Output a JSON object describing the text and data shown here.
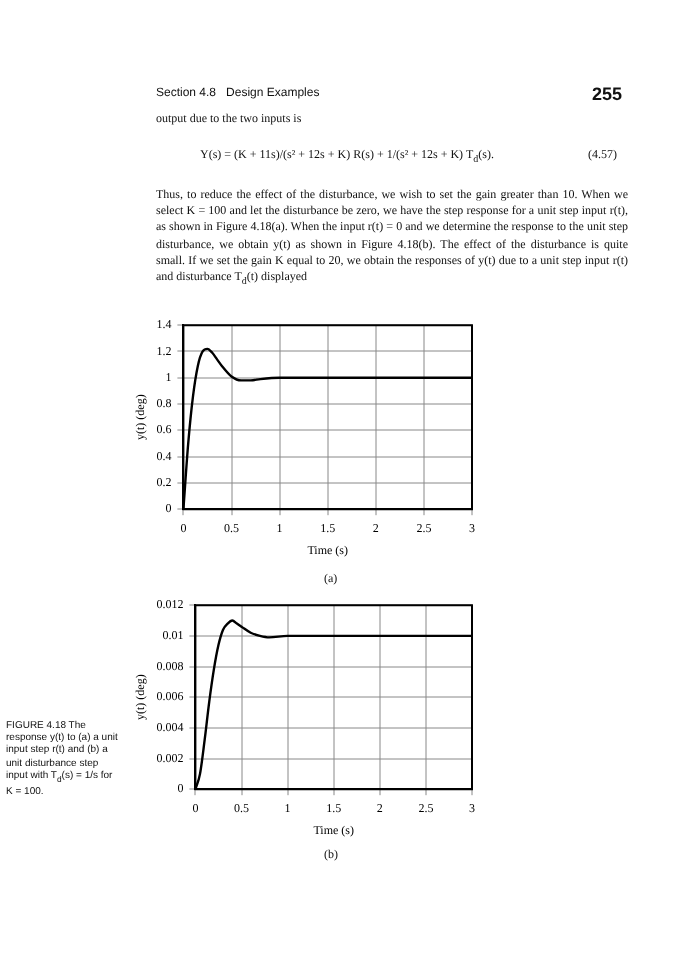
{
  "chart_data": [
    {
      "type": "line",
      "xlabel": "Time (s)",
      "ylabel": "y(t) (deg)",
      "annotations": [
        "Section 4.8   Design Examples",
        "255",
        "output due to the two inputs is",
        "Y(s) = (K + 11s)/(s² + 12s + K) R(s) + 1/(s² + 12s + K) T$_{d}$(s).",
        "(4.57)",
        "Thus, to reduce the effect of the disturbance, we wish to set the gain greater than 10. When we select K = 100 and let the disturbance be zero, we have the step response for a unit step input r(t), as shown in Figure 4.18(a). When the input r(t) = 0 and we determine the response to the unit step disturbance, we obtain y(t) as shown in Figure 4.18(b). The effect of the disturbance is quite small. If we set the gain K equal to 20, we obtain the responses of y(t) due to a unit step input r(t) and disturbance T$_{d}$(t) displayed",
        "(a)"
      ],
      "x": [
        0,
        0.05,
        0.1,
        0.15,
        0.2,
        0.25,
        0.3,
        0.35,
        0.4,
        0.5,
        0.6,
        0.7,
        0.8,
        1,
        1.5,
        2,
        2.5,
        3
      ],
      "series": [
        {
          "color": "#000000",
          "values": [
            0,
            0.5,
            0.86,
            1.09,
            1.2,
            1.22,
            1.19,
            1.14,
            1.09,
            1.01,
            0.98,
            0.98,
            0.99,
            1,
            1,
            1,
            1,
            1
          ]
        }
      ],
      "xlim": [
        0,
        3
      ],
      "xticks": [
        0,
        0.5,
        1,
        1.5,
        2,
        2.5,
        3
      ],
      "ylim": [
        0,
        1.4
      ],
      "yticks": [
        0,
        0.2,
        0.4,
        0.6,
        0.8,
        1,
        1.2,
        1.4
      ],
      "grid": true,
      "legend": false,
      "marker": "none",
      "line_style": "solid"
    },
    {
      "type": "line",
      "xlabel": "Time (s)",
      "ylabel": "y(t) (deg)",
      "annotations": [
        "(b)",
        "FIGURE 4.18 The response y(t) to (a) a unit input step r(t) and (b) a unit disturbance step input with T$_{d}$(s) = 1/s for K = 100."
      ],
      "x": [
        0,
        0.05,
        0.1,
        0.15,
        0.2,
        0.25,
        0.3,
        0.35,
        0.4,
        0.45,
        0.5,
        0.6,
        0.7,
        0.8,
        1,
        1.5,
        2,
        2.5,
        3
      ],
      "series": [
        {
          "color": "#000000",
          "values": [
            0,
            0.001,
            0.0032,
            0.0057,
            0.0078,
            0.0094,
            0.0104,
            0.0108,
            0.011,
            0.0108,
            0.0106,
            0.0102,
            0.01,
            0.0099,
            0.01,
            0.01,
            0.01,
            0.01,
            0.01
          ]
        }
      ],
      "xlim": [
        0,
        3
      ],
      "xticks": [
        0,
        0.5,
        1,
        1.5,
        2,
        2.5,
        3
      ],
      "ylim": [
        0,
        0.012
      ],
      "yticks": [
        0,
        0.002,
        0.004,
        0.006,
        0.008,
        0.01,
        0.012
      ],
      "grid": true,
      "legend": false,
      "marker": "none",
      "line_style": "solid"
    }
  ]
}
